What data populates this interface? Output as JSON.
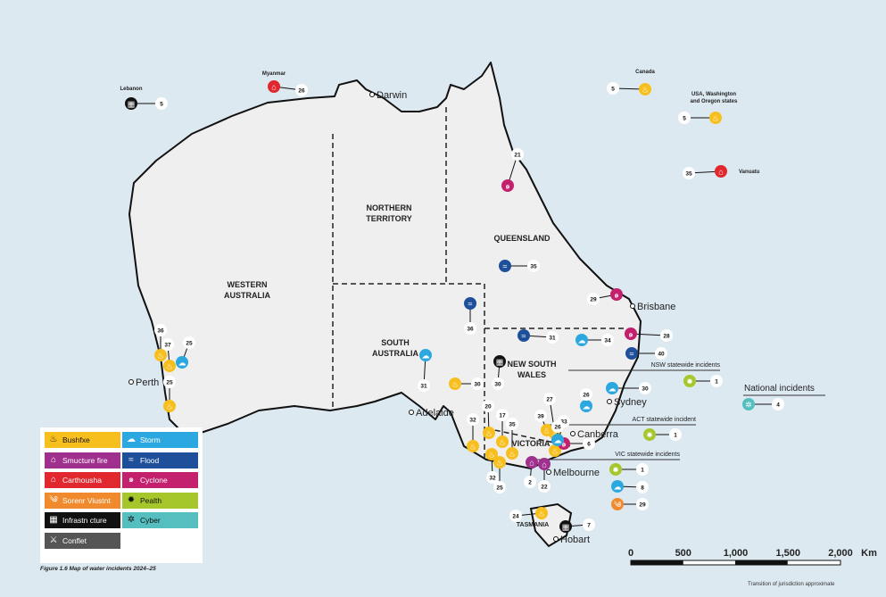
{
  "map": {
    "regions": {
      "wa": [
        "WESTERN",
        "AUSTRALIA"
      ],
      "nt": [
        "NORTHERN",
        "TERRITORY"
      ],
      "qld": "QUEENSLAND",
      "sa": [
        "SOUTH",
        "AUSTRALIA"
      ],
      "nsw": [
        "NEW SOUTH",
        "WALES"
      ],
      "vic": "VICTORIA",
      "tas": "TASMANIA"
    },
    "cities": [
      "Darwin",
      "Brisbane",
      "Perth",
      "Sydney",
      "Canberra",
      "Adelaide",
      "Melbourne",
      "Hobart"
    ],
    "overseas": {
      "lebanon": "Lebanon",
      "myanmar": "Myanmar",
      "canada": "Canada",
      "usa": [
        "USA, Washington",
        "and Oregon states"
      ],
      "vanuatu": "Vanuatu"
    },
    "callouts": {
      "nsw_statewide": "NSW statewide incidents",
      "act_statewide": "ACT statewide incident",
      "vic_statewide": "VIC statewide incidents",
      "national": "National incidents"
    },
    "incidents": [
      {
        "type": "infrastructure",
        "count": "5"
      },
      {
        "type": "earthquake",
        "count": "26"
      },
      {
        "type": "bushfire",
        "count": "5"
      },
      {
        "type": "bushfire",
        "count": "5"
      },
      {
        "type": "earthquake",
        "count": "35"
      },
      {
        "type": "cyclone",
        "count": "21"
      },
      {
        "type": "flood",
        "count": "35"
      },
      {
        "type": "cyclone",
        "count": "29"
      },
      {
        "type": "flood",
        "count": "36"
      },
      {
        "type": "flood",
        "count": "31"
      },
      {
        "type": "storm",
        "count": "34"
      },
      {
        "type": "cyclone",
        "count": "28"
      },
      {
        "type": "flood",
        "count": "40"
      },
      {
        "type": "bushfire",
        "count": "36"
      },
      {
        "type": "bushfire",
        "count": "37"
      },
      {
        "type": "storm",
        "count": "25"
      },
      {
        "type": "bushfire",
        "count": "25"
      },
      {
        "type": "storm",
        "count": "31"
      },
      {
        "type": "bushfire",
        "count": "30"
      },
      {
        "type": "infrastructure",
        "count": "30"
      },
      {
        "type": "storm",
        "count": "26"
      },
      {
        "type": "storm",
        "count": "30"
      },
      {
        "type": "health",
        "count": "1"
      },
      {
        "type": "cyber",
        "count": "4"
      },
      {
        "type": "health",
        "count": "1"
      },
      {
        "type": "health",
        "count": "1"
      },
      {
        "type": "storm",
        "count": "8"
      },
      {
        "type": "severe_weather",
        "count": "29"
      },
      {
        "type": "bushfire",
        "count": "32"
      },
      {
        "type": "bushfire",
        "count": "20"
      },
      {
        "type": "bushfire",
        "count": "17"
      },
      {
        "type": "bushfire",
        "count": "35"
      },
      {
        "type": "bushfire",
        "count": "32"
      },
      {
        "type": "bushfire",
        "count": "25"
      },
      {
        "type": "bushfire",
        "count": "39"
      },
      {
        "type": "bushfire",
        "count": "27"
      },
      {
        "type": "bushfire",
        "count": "33"
      },
      {
        "type": "structure_fire",
        "count": "2"
      },
      {
        "type": "structure_fire",
        "count": "22"
      },
      {
        "type": "cyclone",
        "count": "6"
      },
      {
        "type": "storm",
        "count": "26"
      },
      {
        "type": "bushfire",
        "count": "24"
      },
      {
        "type": "infrastructure",
        "count": "7"
      }
    ]
  },
  "legend": {
    "items": [
      {
        "key": "bushfire",
        "label": "Bushfxe",
        "color": "#f7bf1e",
        "text": "#111",
        "icon": "fire-icon"
      },
      {
        "key": "storm",
        "label": "Storm",
        "color": "#2ba8df",
        "text": "#fff",
        "icon": "storm-icon"
      },
      {
        "key": "structure_fire",
        "label": "Smucture fire",
        "color": "#a0308e",
        "text": "#fff",
        "icon": "house-outline-icon"
      },
      {
        "key": "flood",
        "label": "Flood",
        "color": "#1d4f9a",
        "text": "#fff",
        "icon": "flood-icon"
      },
      {
        "key": "earthquake",
        "label": "Carthousha",
        "color": "#e0282e",
        "text": "#fff",
        "icon": "house-icon"
      },
      {
        "key": "cyclone",
        "label": "Cyclone",
        "color": "#c3206e",
        "text": "#fff",
        "icon": "cyclone-icon"
      },
      {
        "key": "severe_weather",
        "label": "Sorenr Viustnt",
        "color": "#f18a2c",
        "text": "#fff",
        "icon": "wind-icon"
      },
      {
        "key": "health",
        "label": "Pealth",
        "color": "#a6c72c",
        "text": "#111",
        "icon": "virus-icon"
      },
      {
        "key": "infrastructure",
        "label": "Infrastn cture",
        "color": "#111111",
        "text": "#fff",
        "icon": "building-icon"
      },
      {
        "key": "cyber",
        "label": "Cyber",
        "color": "#55bfbf",
        "text": "#111",
        "icon": "cyber-icon"
      },
      {
        "key": "conflict",
        "label": "Conflet",
        "color": "#555555",
        "text": "#fff",
        "icon": "conflict-icon"
      }
    ]
  },
  "scale": {
    "ticks": [
      "0",
      "500",
      "1,000",
      "1,500",
      "2,000"
    ],
    "unit": "Km"
  },
  "caption": "Figure 1.6 Map of water incidents 2024–25",
  "note": "Transition of jurisdiction approximate",
  "colors": {
    "sea": "#dde9f1",
    "land": "#efefef",
    "coast": "#111111"
  }
}
